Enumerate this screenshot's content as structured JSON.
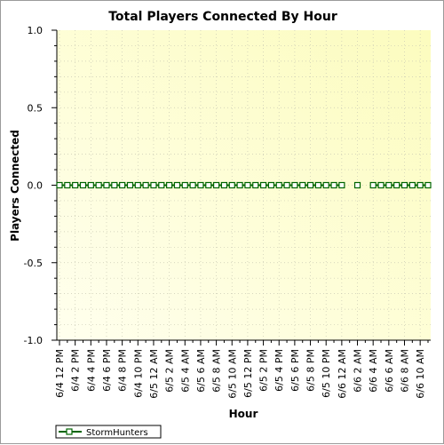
{
  "chart_data": {
    "type": "line",
    "title": "Total Players Connected By Hour",
    "xlabel": "Hour",
    "ylabel": "Players Connected",
    "ylim": [
      -1.0,
      1.0
    ],
    "y_ticks": [
      "1.0",
      "0.5",
      "0.0",
      "-0.5",
      "-1.0"
    ],
    "x_tick_labels": [
      "6/4 12 PM",
      "6/4 2 PM",
      "6/4 4 PM",
      "6/4 6 PM",
      "6/4 8 PM",
      "6/4 10 PM",
      "6/5 12 AM",
      "6/5 2 AM",
      "6/5 4 AM",
      "6/5 6 AM",
      "6/5 8 AM",
      "6/5 10 AM",
      "6/5 12 PM",
      "6/5 2 PM",
      "6/5 4 PM",
      "6/5 6 PM",
      "6/5 8 PM",
      "6/5 10 PM",
      "6/6 12 AM",
      "6/6 2 AM",
      "6/6 4 AM",
      "6/6 6 AM",
      "6/6 8 AM",
      "6/6 10 AM"
    ],
    "x_range_hours": [
      0,
      47
    ],
    "grid": true,
    "legend_position": "bottom-left",
    "series": [
      {
        "name": "StormHunters",
        "color": "#006400",
        "points": [
          [
            0,
            0
          ],
          [
            1,
            0
          ],
          [
            2,
            0
          ],
          [
            3,
            0
          ],
          [
            4,
            0
          ],
          [
            5,
            0
          ],
          [
            6,
            0
          ],
          [
            7,
            0
          ],
          [
            8,
            0
          ],
          [
            9,
            0
          ],
          [
            10,
            0
          ],
          [
            11,
            0
          ],
          [
            12,
            0
          ],
          [
            13,
            0
          ],
          [
            14,
            0
          ],
          [
            15,
            0
          ],
          [
            16,
            0
          ],
          [
            17,
            0
          ],
          [
            18,
            0
          ],
          [
            19,
            0
          ],
          [
            20,
            0
          ],
          [
            21,
            0
          ],
          [
            22,
            0
          ],
          [
            23,
            0
          ],
          [
            24,
            0
          ],
          [
            25,
            0
          ],
          [
            26,
            0
          ],
          [
            27,
            0
          ],
          [
            28,
            0
          ],
          [
            29,
            0
          ],
          [
            30,
            0
          ],
          [
            31,
            0
          ],
          [
            32,
            0
          ],
          [
            33,
            0
          ],
          [
            34,
            0
          ],
          [
            35,
            0
          ],
          [
            36,
            0
          ],
          [
            38,
            0
          ],
          [
            40,
            0
          ],
          [
            41,
            0
          ],
          [
            42,
            0
          ],
          [
            43,
            0
          ],
          [
            44,
            0
          ],
          [
            45,
            0
          ],
          [
            46,
            0
          ],
          [
            47,
            0
          ]
        ]
      }
    ]
  }
}
